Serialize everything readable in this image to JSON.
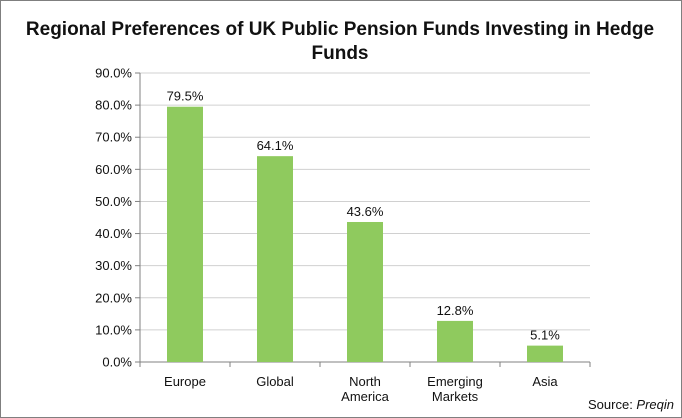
{
  "chart_data": {
    "type": "bar",
    "title": "Regional Preferences of UK Public Pension Funds Investing in Hedge Funds",
    "categories": [
      [
        "Europe"
      ],
      [
        "Global"
      ],
      [
        "North",
        "America"
      ],
      [
        "Emerging",
        "Markets"
      ],
      [
        "Asia"
      ]
    ],
    "values": [
      79.5,
      64.1,
      43.6,
      12.8,
      5.1
    ],
    "data_labels": [
      "79.5%",
      "64.1%",
      "43.6%",
      "12.8%",
      "5.1%"
    ],
    "yticks": [
      "0.0%",
      "10.0%",
      "20.0%",
      "30.0%",
      "40.0%",
      "50.0%",
      "60.0%",
      "70.0%",
      "80.0%",
      "90.0%"
    ],
    "ylim": [
      0,
      90
    ],
    "bar_color": "#8fca5e",
    "grid": true,
    "legend": "none"
  },
  "source": {
    "prefix": "Source: ",
    "name": "Preqin"
  }
}
